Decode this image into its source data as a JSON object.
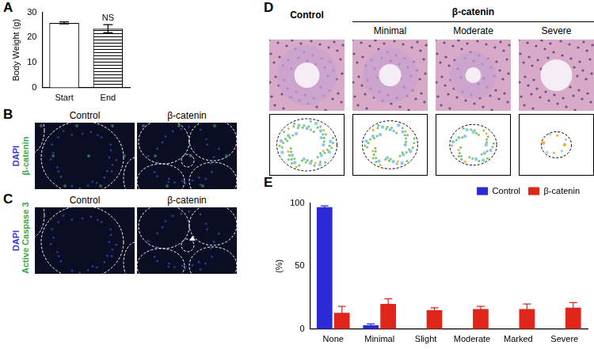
{
  "chart_data": [
    {
      "label": "A",
      "type": "bar",
      "categories": [
        "Start",
        "End"
      ],
      "values": [
        25.8,
        23.5
      ],
      "errors": [
        0.4,
        1.6
      ],
      "color": "#ffffff",
      "ylabel": "Body Weight (g)",
      "ylim": [
        0,
        30
      ],
      "yticks": [
        0,
        10,
        20,
        30
      ],
      "grid": false,
      "annotations": [
        {
          "text": "NS",
          "category": "End"
        }
      ]
    },
    {
      "label": "E",
      "type": "bar",
      "categories": [
        "None",
        "Minimal",
        "Slight",
        "Moderate",
        "Marked",
        "Severe"
      ],
      "series": [
        {
          "name": "Control",
          "color": "#2b2bd6",
          "values": [
            97,
            3,
            0,
            0,
            0,
            0
          ],
          "errors": [
            1,
            1,
            0,
            0,
            0,
            0
          ]
        },
        {
          "name": "β-catenin",
          "color": "#e0261b",
          "values": [
            13,
            20,
            15,
            16,
            16,
            17
          ],
          "errors": [
            5,
            4,
            2,
            2,
            4,
            4
          ]
        }
      ],
      "ylabel": "(%)",
      "ylim": [
        0,
        100
      ],
      "yticks": [
        0,
        50,
        100
      ],
      "grid": false,
      "legend": "top-right"
    }
  ],
  "panels": [
    {
      "label": "B",
      "channels": [
        {
          "text": "DAPI",
          "color": "#3a3ad8"
        },
        {
          "text": "β-catenin",
          "color": "#2fa84f"
        }
      ],
      "columns": [
        "Control",
        "β-catenin"
      ]
    },
    {
      "label": "C",
      "channels": [
        {
          "text": "DAPI",
          "color": "#3a3ad8"
        },
        {
          "text": "Active Caspase 3",
          "color": "#2fa84f"
        }
      ],
      "columns": [
        "Control",
        "β-catenin"
      ]
    },
    {
      "label": "D",
      "control": "Control",
      "group": "β-catenin",
      "group_columns": [
        "Minimal",
        "Moderate",
        "Severe"
      ]
    }
  ]
}
